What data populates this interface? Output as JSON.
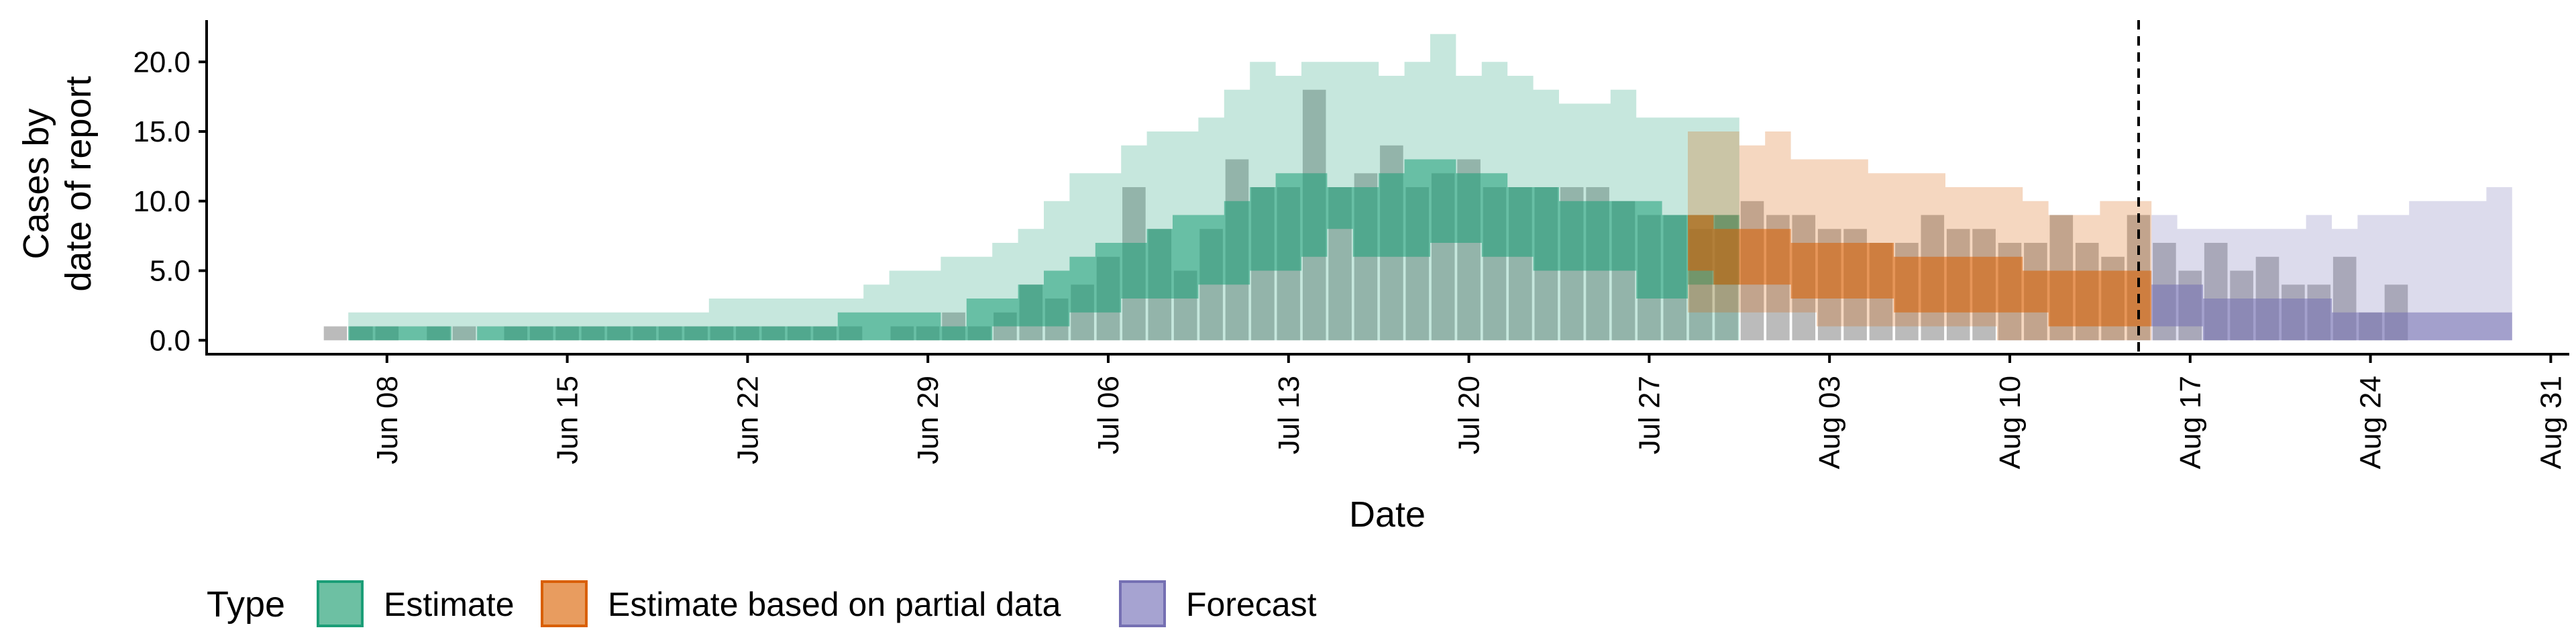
{
  "chart_data": {
    "type": "area",
    "ylabel_lines": [
      "Cases by",
      "date of report"
    ],
    "xlabel": "Date",
    "y_ticks": [
      "0.0",
      "5.0",
      "10.0",
      "15.0",
      "20.0"
    ],
    "ylim": [
      -1,
      23
    ],
    "xlim": [
      "2020-06-01",
      "2020-09-01"
    ],
    "x_ticks": [
      {
        "date": "2020-06-08",
        "label": "Jun 08"
      },
      {
        "date": "2020-06-15",
        "label": "Jun 15"
      },
      {
        "date": "2020-06-22",
        "label": "Jun 22"
      },
      {
        "date": "2020-06-29",
        "label": "Jun 29"
      },
      {
        "date": "2020-07-06",
        "label": "Jul 06"
      },
      {
        "date": "2020-07-13",
        "label": "Jul 13"
      },
      {
        "date": "2020-07-20",
        "label": "Jul 20"
      },
      {
        "date": "2020-07-27",
        "label": "Jul 27"
      },
      {
        "date": "2020-08-03",
        "label": "Aug 03"
      },
      {
        "date": "2020-08-10",
        "label": "Aug 10"
      },
      {
        "date": "2020-08-17",
        "label": "Aug 17"
      },
      {
        "date": "2020-08-24",
        "label": "Aug 24"
      },
      {
        "date": "2020-08-31",
        "label": "Aug 31"
      }
    ],
    "vline_date": "2020-08-15",
    "reported_cases": {
      "start_date": "2020-06-06",
      "values": [
        1,
        1,
        1,
        0,
        1,
        1,
        0,
        1,
        1,
        1,
        1,
        1,
        1,
        1,
        1,
        1,
        1,
        1,
        1,
        1,
        1,
        0,
        1,
        1,
        2,
        1,
        2,
        4,
        3,
        4,
        6,
        11,
        8,
        5,
        8,
        13,
        11,
        11,
        18,
        11,
        12,
        14,
        11,
        12,
        13,
        11,
        11,
        11,
        11,
        11,
        10,
        9,
        9,
        8,
        9,
        10,
        9,
        9,
        8,
        8,
        7,
        7,
        9,
        8,
        8,
        7,
        7,
        9,
        7,
        6,
        9,
        7,
        5,
        7,
        5,
        6,
        4,
        4,
        6,
        2,
        4
      ]
    },
    "series": [
      {
        "name": "Estimate",
        "color": "#1B9E77",
        "start_date": "2020-06-07",
        "outer_lower": [
          0,
          0,
          0,
          0,
          0,
          0,
          0,
          0,
          0,
          0,
          0,
          0,
          0,
          0,
          0,
          0,
          0,
          0,
          0,
          0,
          0,
          0,
          0,
          0,
          0,
          0,
          0,
          0,
          0,
          0,
          0,
          0,
          0,
          0,
          0,
          0,
          0,
          0,
          0,
          0,
          0,
          0,
          0,
          0,
          0,
          0,
          0,
          0,
          0,
          0,
          0,
          0,
          0,
          0
        ],
        "outer_upper": [
          2,
          2,
          2,
          2,
          2,
          2,
          2,
          2,
          2,
          2,
          2,
          2,
          2,
          2,
          3,
          3,
          3,
          3,
          3,
          3,
          4,
          5,
          5,
          6,
          6,
          7,
          8,
          10,
          12,
          12,
          14,
          15,
          15,
          16,
          18,
          20,
          19,
          20,
          20,
          20,
          19,
          20,
          22,
          19,
          20,
          19,
          18,
          17,
          17,
          18,
          16,
          16,
          16,
          16
        ],
        "inner_lower": [
          0,
          0,
          0,
          0,
          0,
          0,
          0,
          0,
          0,
          0,
          0,
          0,
          0,
          0,
          0,
          0,
          0,
          0,
          0,
          0,
          0,
          0,
          0,
          0,
          0,
          1,
          1,
          1,
          2,
          2,
          3,
          3,
          3,
          4,
          4,
          5,
          5,
          6,
          8,
          6,
          6,
          6,
          7,
          7,
          6,
          6,
          5,
          5,
          5,
          5,
          3,
          3,
          4,
          4
        ],
        "inner_upper": [
          1,
          1,
          1,
          1,
          0,
          1,
          1,
          1,
          1,
          1,
          1,
          1,
          1,
          1,
          1,
          1,
          1,
          1,
          1,
          2,
          2,
          2,
          2,
          1,
          3,
          3,
          4,
          5,
          6,
          7,
          7,
          8,
          9,
          9,
          10,
          11,
          12,
          12,
          11,
          11,
          12,
          13,
          13,
          12,
          12,
          11,
          11,
          10,
          10,
          10,
          10,
          9,
          9,
          9
        ]
      },
      {
        "name": "Estimate based on partial data",
        "color": "#D95F02",
        "start_date": "2020-07-29",
        "outer_lower": [
          2,
          2,
          2,
          2,
          2,
          1,
          1,
          1,
          1,
          1,
          1,
          1,
          0,
          0,
          0,
          0,
          0,
          0
        ],
        "outer_upper": [
          15,
          15,
          14,
          15,
          13,
          13,
          13,
          12,
          12,
          12,
          11,
          11,
          11,
          10,
          9,
          9,
          10,
          10
        ],
        "inner_lower": [
          5,
          4,
          4,
          4,
          3,
          3,
          3,
          3,
          2,
          2,
          2,
          2,
          2,
          2,
          1,
          1,
          1,
          1
        ],
        "inner_upper": [
          9,
          8,
          8,
          8,
          7,
          7,
          7,
          7,
          6,
          6,
          6,
          6,
          6,
          5,
          5,
          5,
          5,
          5
        ]
      },
      {
        "name": "Forecast",
        "color": "#7570B3",
        "start_date": "2020-08-16",
        "outer_lower": [
          0,
          0,
          0,
          0,
          0,
          0,
          0,
          0,
          0,
          0,
          0,
          0,
          0,
          0
        ],
        "outer_upper": [
          9,
          8,
          8,
          8,
          8,
          8,
          9,
          8,
          9,
          9,
          10,
          10,
          10,
          11
        ],
        "inner_lower": [
          1,
          1,
          0,
          0,
          0,
          0,
          0,
          0,
          0,
          0,
          0,
          0,
          0,
          0
        ],
        "inner_upper": [
          4,
          4,
          3,
          3,
          3,
          3,
          3,
          2,
          2,
          2,
          2,
          2,
          2,
          2
        ]
      }
    ],
    "legend": {
      "title": "Type",
      "position": "bottom",
      "items": [
        {
          "label": "Estimate",
          "fill": "#6DC0A3",
          "stroke": "#1B9E77"
        },
        {
          "label": "Estimate based on partial data",
          "fill": "#E89C5F",
          "stroke": "#D95F02"
        },
        {
          "label": "Forecast",
          "fill": "#A6A3D1",
          "stroke": "#7570B3"
        }
      ]
    }
  }
}
